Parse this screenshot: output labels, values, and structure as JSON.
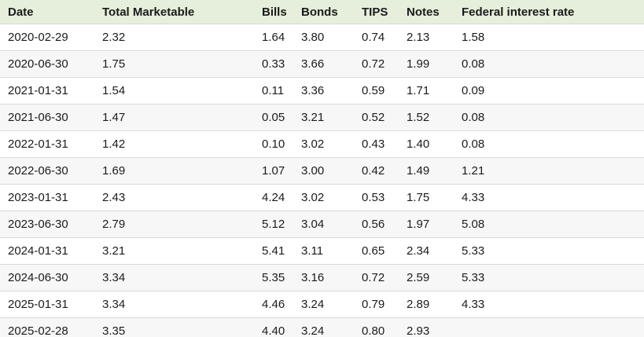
{
  "table": {
    "columns": [
      {
        "key": "date",
        "label": "Date"
      },
      {
        "key": "total_marketable",
        "label": "Total Marketable"
      },
      {
        "key": "bills",
        "label": "Bills"
      },
      {
        "key": "bonds",
        "label": "Bonds"
      },
      {
        "key": "tips",
        "label": "TIPS"
      },
      {
        "key": "notes",
        "label": "Notes"
      },
      {
        "key": "federal_interest_rate",
        "label": "Federal interest rate"
      }
    ],
    "rows": [
      [
        "2020-02-29",
        "2.32",
        "1.64",
        "3.80",
        "0.74",
        "2.13",
        "1.58"
      ],
      [
        "2020-06-30",
        "1.75",
        "0.33",
        "3.66",
        "0.72",
        "1.99",
        "0.08"
      ],
      [
        "2021-01-31",
        "1.54",
        "0.11",
        "3.36",
        "0.59",
        "1.71",
        "0.09"
      ],
      [
        "2021-06-30",
        "1.47",
        "0.05",
        "3.21",
        "0.52",
        "1.52",
        "0.08"
      ],
      [
        "2022-01-31",
        "1.42",
        "0.10",
        "3.02",
        "0.43",
        "1.40",
        "0.08"
      ],
      [
        "2022-06-30",
        "1.69",
        "1.07",
        "3.00",
        "0.42",
        "1.49",
        "1.21"
      ],
      [
        "2023-01-31",
        "2.43",
        "4.24",
        "3.02",
        "0.53",
        "1.75",
        "4.33"
      ],
      [
        "2023-06-30",
        "2.79",
        "5.12",
        "3.04",
        "0.56",
        "1.97",
        "5.08"
      ],
      [
        "2024-01-31",
        "3.21",
        "5.41",
        "3.11",
        "0.65",
        "2.34",
        "5.33"
      ],
      [
        "2024-06-30",
        "3.34",
        "5.35",
        "3.16",
        "0.72",
        "2.59",
        "5.33"
      ],
      [
        "2025-01-31",
        "3.34",
        "4.46",
        "3.24",
        "0.79",
        "2.89",
        "4.33"
      ],
      [
        "2025-02-28",
        "3.35",
        "4.40",
        "3.24",
        "0.80",
        "2.93",
        ""
      ]
    ]
  },
  "colors": {
    "header_bg": "#e5efdb",
    "row_bg": "#ffffff",
    "row_alt_bg": "#f7f7f7",
    "border": "#d9d9d9",
    "text": "#1b1b1b"
  },
  "chart_data": {
    "type": "table",
    "title": "",
    "columns": [
      "Date",
      "Total Marketable",
      "Bills",
      "Bonds",
      "TIPS",
      "Notes",
      "Federal interest rate"
    ],
    "rows": [
      [
        "2020-02-29",
        2.32,
        1.64,
        3.8,
        0.74,
        2.13,
        1.58
      ],
      [
        "2020-06-30",
        1.75,
        0.33,
        3.66,
        0.72,
        1.99,
        0.08
      ],
      [
        "2021-01-31",
        1.54,
        0.11,
        3.36,
        0.59,
        1.71,
        0.09
      ],
      [
        "2021-06-30",
        1.47,
        0.05,
        3.21,
        0.52,
        1.52,
        0.08
      ],
      [
        "2022-01-31",
        1.42,
        0.1,
        3.02,
        0.43,
        1.4,
        0.08
      ],
      [
        "2022-06-30",
        1.69,
        1.07,
        3.0,
        0.42,
        1.49,
        1.21
      ],
      [
        "2023-01-31",
        2.43,
        4.24,
        3.02,
        0.53,
        1.75,
        4.33
      ],
      [
        "2023-06-30",
        2.79,
        5.12,
        3.04,
        0.56,
        1.97,
        5.08
      ],
      [
        "2024-01-31",
        3.21,
        5.41,
        3.11,
        0.65,
        2.34,
        5.33
      ],
      [
        "2024-06-30",
        3.34,
        5.35,
        3.16,
        0.72,
        2.59,
        5.33
      ],
      [
        "2025-01-31",
        3.34,
        4.46,
        3.24,
        0.79,
        2.89,
        4.33
      ],
      [
        "2025-02-28",
        3.35,
        4.4,
        3.24,
        0.8,
        2.93,
        null
      ]
    ],
    "notes_layout": "striped rows, pale-green header band, all columns left-aligned"
  }
}
